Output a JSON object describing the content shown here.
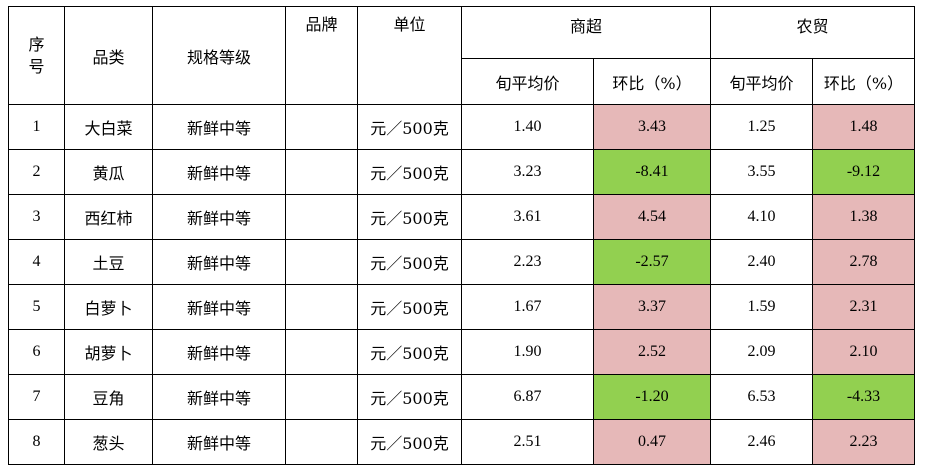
{
  "table": {
    "headers": {
      "seq_char1": "序",
      "seq_char2": "号",
      "category": "品类",
      "spec": "规格等级",
      "brand": "品牌",
      "unit": "单位",
      "supermarket": "商超",
      "farmers_market": "农贸",
      "avg_price": "旬平均价",
      "mom": "环比（%）"
    },
    "colors": {
      "increase": "#e6b8b8",
      "decrease": "#92d050"
    },
    "rows": [
      {
        "seq": "1",
        "category": "大白菜",
        "spec": "新鲜中等",
        "brand": "",
        "unit": "元／500克",
        "sm_avg": "1.40",
        "sm_mom": "3.43",
        "fm_avg": "1.25",
        "fm_mom": "1.48"
      },
      {
        "seq": "2",
        "category": "黄瓜",
        "spec": "新鲜中等",
        "brand": "",
        "unit": "元／500克",
        "sm_avg": "3.23",
        "sm_mom": "-8.41",
        "fm_avg": "3.55",
        "fm_mom": "-9.12"
      },
      {
        "seq": "3",
        "category": "西红柿",
        "spec": "新鲜中等",
        "brand": "",
        "unit": "元／500克",
        "sm_avg": "3.61",
        "sm_mom": "4.54",
        "fm_avg": "4.10",
        "fm_mom": "1.38"
      },
      {
        "seq": "4",
        "category": "土豆",
        "spec": "新鲜中等",
        "brand": "",
        "unit": "元／500克",
        "sm_avg": "2.23",
        "sm_mom": "-2.57",
        "fm_avg": "2.40",
        "fm_mom": "2.78"
      },
      {
        "seq": "5",
        "category": "白萝卜",
        "spec": "新鲜中等",
        "brand": "",
        "unit": "元／500克",
        "sm_avg": "1.67",
        "sm_mom": "3.37",
        "fm_avg": "1.59",
        "fm_mom": "2.31"
      },
      {
        "seq": "6",
        "category": "胡萝卜",
        "spec": "新鲜中等",
        "brand": "",
        "unit": "元／500克",
        "sm_avg": "1.90",
        "sm_mom": "2.52",
        "fm_avg": "2.09",
        "fm_mom": "2.10"
      },
      {
        "seq": "7",
        "category": "豆角",
        "spec": "新鲜中等",
        "brand": "",
        "unit": "元／500克",
        "sm_avg": "6.87",
        "sm_mom": "-1.20",
        "fm_avg": "6.53",
        "fm_mom": "-4.33"
      },
      {
        "seq": "8",
        "category": "葱头",
        "spec": "新鲜中等",
        "brand": "",
        "unit": "元／500克",
        "sm_avg": "2.51",
        "sm_mom": "0.47",
        "fm_avg": "2.46",
        "fm_mom": "2.23"
      }
    ]
  }
}
